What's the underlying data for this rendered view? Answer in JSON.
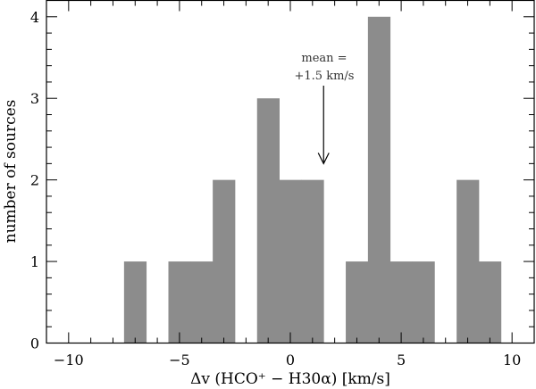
{
  "chart_data": {
    "type": "bar",
    "subtype": "histogram",
    "xlabel": "Δv (HCO⁺ − H30α) [km/s]",
    "ylabel": "number of sources",
    "xlim": [
      -11,
      11
    ],
    "ylim": [
      0,
      4.2
    ],
    "x_major_ticks": [
      -10,
      -5,
      0,
      5,
      10
    ],
    "y_major_ticks": [
      0,
      1,
      2,
      3,
      4
    ],
    "x_minor_step": 1,
    "y_minor_step": 0.2,
    "bin_width": 1,
    "bar_color": "#8c8c8c",
    "bins": [
      {
        "x0": -7.5,
        "x1": -6.5,
        "count": 1
      },
      {
        "x0": -5.5,
        "x1": -4.5,
        "count": 1
      },
      {
        "x0": -4.5,
        "x1": -3.5,
        "count": 1
      },
      {
        "x0": -3.5,
        "x1": -2.5,
        "count": 2
      },
      {
        "x0": -1.5,
        "x1": -0.5,
        "count": 3
      },
      {
        "x0": -0.5,
        "x1": 0.5,
        "count": 2
      },
      {
        "x0": 0.5,
        "x1": 1.5,
        "count": 2
      },
      {
        "x0": 2.5,
        "x1": 3.5,
        "count": 1
      },
      {
        "x0": 3.5,
        "x1": 4.5,
        "count": 4
      },
      {
        "x0": 4.5,
        "x1": 5.5,
        "count": 1
      },
      {
        "x0": 5.5,
        "x1": 6.5,
        "count": 1
      },
      {
        "x0": 7.5,
        "x1": 8.5,
        "count": 2
      },
      {
        "x0": 8.5,
        "x1": 9.5,
        "count": 1
      }
    ],
    "annotation": {
      "line1": "mean =",
      "line2": "+1.5 km/s",
      "arrow_x": 1.5,
      "arrow_tip_y": 2.2
    },
    "grid": false
  }
}
